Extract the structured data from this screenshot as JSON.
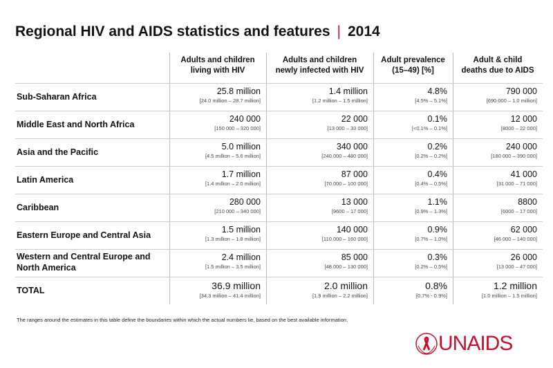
{
  "header": {
    "title": "Regional HIV and AIDS statistics and features",
    "separator": "|",
    "year": "2014"
  },
  "table": {
    "columns": [
      [
        "Adults and children",
        "living with HIV"
      ],
      [
        "Adults and children",
        "newly infected with HIV"
      ],
      [
        "Adult prevalence",
        "(15–49) [%]"
      ],
      [
        "Adult & child",
        "deaths due to AIDS"
      ]
    ],
    "rows": [
      {
        "label": "Sub-Saharan Africa",
        "cells": [
          [
            "25.8 million",
            "[24.0 million – 28.7 million]"
          ],
          [
            "1.4 million",
            "[1.2 million – 1.5 million]"
          ],
          [
            "4.8%",
            "[4.5% – 5.1%]"
          ],
          [
            "790 000",
            "[690 000 – 1.0 million]"
          ]
        ]
      },
      {
        "label": "Middle East and North Africa",
        "cells": [
          [
            "240 000",
            "[150 000 – 320 000]"
          ],
          [
            "22 000",
            "[13 000 – 33 000]"
          ],
          [
            "0.1%",
            "[<0.1% – 0.1%]"
          ],
          [
            "12 000",
            "[8000 – 22 000]"
          ]
        ]
      },
      {
        "label": "Asia and the Pacific",
        "cells": [
          [
            "5.0 million",
            "[4.5 million – 5.6 million]"
          ],
          [
            "340 000",
            "[240 000 – 480 000]"
          ],
          [
            "0.2%",
            "[0.2% – 0.2%]"
          ],
          [
            "240 000",
            "[180 000 – 390 000]"
          ]
        ]
      },
      {
        "label": "Latin America",
        "cells": [
          [
            "1.7 million",
            "[1.4 million – 2.0 million]"
          ],
          [
            "87 000",
            "[70 000 – 100 000]"
          ],
          [
            "0.4%",
            "[0.4% – 0.5%]"
          ],
          [
            "41 000",
            "[31 000 – 71 000]"
          ]
        ]
      },
      {
        "label": "Caribbean",
        "cells": [
          [
            "280 000",
            "[210 000 – 340 000]"
          ],
          [
            "13 000",
            "[9600 – 17 000]"
          ],
          [
            "1.1%",
            "[0.9% – 1.3%]"
          ],
          [
            "8800",
            "[6000 – 17 000]"
          ]
        ]
      },
      {
        "label": "Eastern Europe and Central Asia",
        "cells": [
          [
            "1.5 million",
            "[1.3 million – 1.8 million]"
          ],
          [
            "140 000",
            "[110 000 – 160 000]"
          ],
          [
            "0.9%",
            "[0.7% – 1.0%]"
          ],
          [
            "62 000",
            "[46 000 – 140 000]"
          ]
        ]
      },
      {
        "label": "Western and Central Europe and North America",
        "cells": [
          [
            "2.4 million",
            "[1.5 million – 3.5 million]"
          ],
          [
            "85 000",
            "[48 000 – 130 000]"
          ],
          [
            "0.3%",
            "[0.2% – 0.5%]"
          ],
          [
            "26 000",
            "[13 000 – 47 000]"
          ]
        ]
      },
      {
        "label": "TOTAL",
        "cells": [
          [
            "36.9 million",
            "[34.3 million – 41.4 million]"
          ],
          [
            "2.0 million",
            "[1.9 million – 2.2 million]"
          ],
          [
            "0.8%",
            "[0.7% - 0.9%]"
          ],
          [
            "1.2 million",
            "[1.0 million – 1.5 million]"
          ]
        ]
      }
    ]
  },
  "footer": {
    "note": "The ranges around the estimates in this table define the boundaries within which the actual numbers lie, based on the best available information.",
    "logo": "UNAIDS"
  }
}
